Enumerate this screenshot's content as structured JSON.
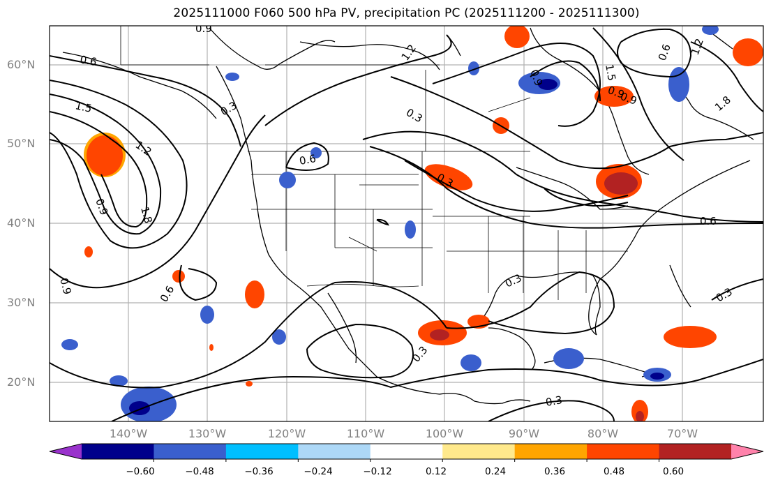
{
  "title": "2025111000 F060 500 hPa PV, precipitation PC (2025111200 - 2025111300)",
  "latitude_labels": [
    "60°N",
    "50°N",
    "40°N",
    "30°N",
    "20°N"
  ],
  "longitude_labels": [
    "140°W",
    "130°W",
    "120°W",
    "110°W",
    "100°W",
    "90°W",
    "80°W",
    "70°W"
  ],
  "contour_labels": [
    "0.9",
    "0.6",
    "1.2",
    "1.5",
    "0.3",
    "1.5",
    "0.9",
    "0.3",
    "0.6",
    "0.9",
    "1.2",
    "1.8",
    "0.6",
    "0.9",
    "0.6",
    "0.3",
    "0.3",
    "0.3",
    "0.6",
    "0.3",
    "0.3",
    "1.2",
    "0.9",
    "1.8",
    "0.9"
  ],
  "colorbar": {
    "ticks": [
      "−0.60",
      "−0.48",
      "−0.36",
      "−0.24",
      "−0.12",
      "0.12",
      "0.24",
      "0.36",
      "0.48",
      "0.60"
    ],
    "colors": [
      "#9932cc",
      "#00008b",
      "#3a5fcd",
      "#00bfff",
      "#add8f7",
      "#ffffff",
      "#ffe98c",
      "#ffa500",
      "#ff4500",
      "#b22222",
      "#ff82ab"
    ]
  }
}
